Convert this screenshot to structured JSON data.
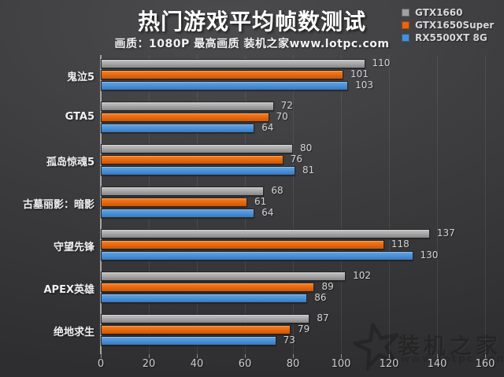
{
  "title": "热门游戏平均帧数测试",
  "subtitle": "画质：1080P 最高画质 装机之家www.lotpc.com",
  "legend": {
    "items": [
      {
        "label": "GTX1660",
        "color": "#a0a0a0"
      },
      {
        "label": "GTX1650Super",
        "color": "#e8650f"
      },
      {
        "label": "RX5500XT 8G",
        "color": "#4a8fd7"
      }
    ]
  },
  "watermark": {
    "brand": "装机之家",
    "url": "www.lotpc.com"
  },
  "colors": {
    "background": "#3c3c3e",
    "title_text": "#ffffff",
    "value_text": "#d4d4d4",
    "axis_text": "#cbcbcb"
  },
  "chart_data": {
    "type": "bar",
    "orientation": "horizontal",
    "title": "热门游戏平均帧数测试",
    "subtitle": "画质：1080P 最高画质 装机之家www.lotpc.com",
    "categories": [
      "鬼泣5",
      "GTA5",
      "孤岛惊魂5",
      "古墓丽影：暗影",
      "守望先锋",
      "APEX英雄",
      "绝地求生"
    ],
    "series": [
      {
        "name": "GTX1660",
        "color": "#a3a3a3",
        "color_top": "#c4c4c4",
        "color_bottom": "#868686",
        "values": [
          110,
          72,
          80,
          68,
          137,
          102,
          87
        ]
      },
      {
        "name": "GTX1650Super",
        "color": "#e8650f",
        "color_top": "#f5821f",
        "color_bottom": "#c85804",
        "values": [
          101,
          70,
          76,
          61,
          118,
          89,
          79
        ]
      },
      {
        "name": "RX5500XT 8G",
        "color": "#4a8fd7",
        "color_top": "#62a3e3",
        "color_bottom": "#3a77bb",
        "values": [
          103,
          64,
          81,
          64,
          130,
          86,
          73
        ]
      }
    ],
    "xlabel": "",
    "ylabel": "",
    "x_ticks": [
      0,
      20,
      40,
      60,
      80,
      100,
      120,
      140,
      160
    ],
    "xlim": [
      0,
      160
    ],
    "grid": true,
    "legend_position": "top-right",
    "value_labels": true
  }
}
